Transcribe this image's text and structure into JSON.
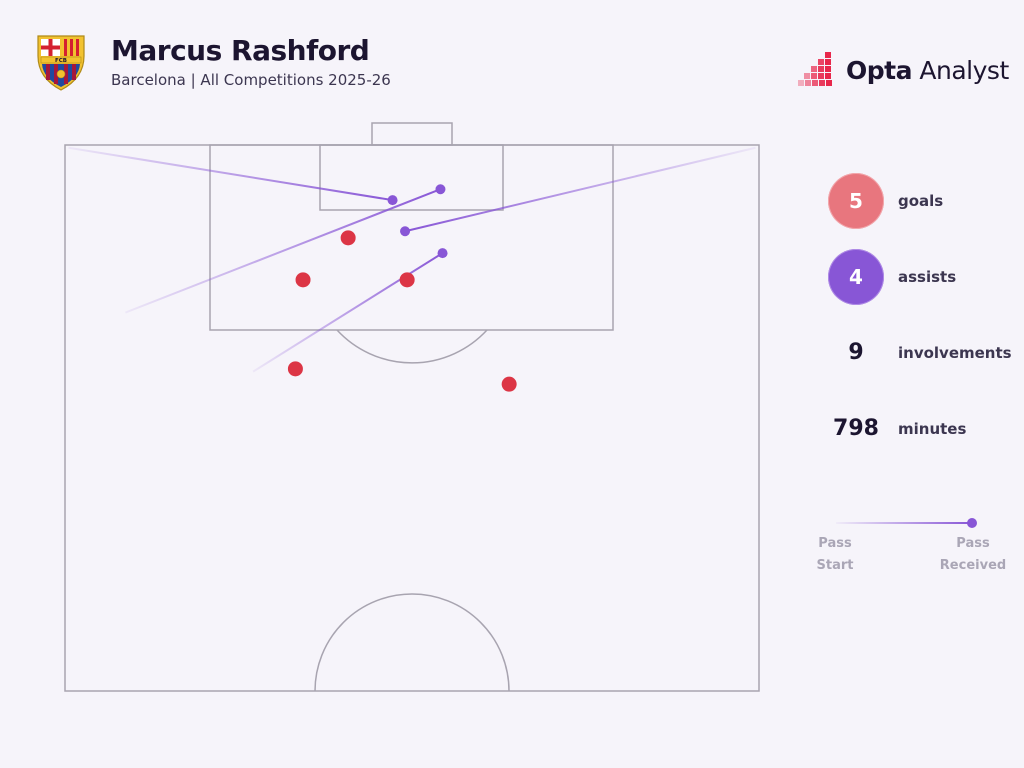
{
  "header": {
    "title": "Marcus Rashford",
    "subtitle": "Barcelona | All Competitions 2025-26",
    "crest_icon": "fcb-crest-icon",
    "crest_text": "FCB"
  },
  "brand": {
    "name_bold": "Opta",
    "name_rest": " Analyst",
    "logo_icon": "opta-dots-icon",
    "accent": "#e8274b"
  },
  "stats": {
    "goals": {
      "value": "5",
      "label": "goals",
      "color": "#e8767e"
    },
    "assists": {
      "value": "4",
      "label": "assists",
      "color": "#8856d6"
    },
    "involvements": {
      "value": "9",
      "label": "involvements"
    },
    "minutes": {
      "value": "798",
      "label": "minutes"
    }
  },
  "legend": {
    "start_label": "Pass Start",
    "end_label": "Pass Received",
    "color": "#8856d6"
  },
  "chart_data": {
    "type": "scatter",
    "pitch": "half-pitch, attacking end at top; x = 0-100 across width, y = 0-100 distance up from halfway line",
    "goal_shots": {
      "color": "#dc3545",
      "points": [
        {
          "x": 40.8,
          "y": 83.0
        },
        {
          "x": 34.3,
          "y": 75.3
        },
        {
          "x": 49.3,
          "y": 75.3
        },
        {
          "x": 33.2,
          "y": 59.0
        },
        {
          "x": 64.0,
          "y": 56.2
        }
      ]
    },
    "assist_passes": {
      "color": "#8856d6",
      "passes": [
        {
          "start": {
            "x": 0.5,
            "y": 99.5
          },
          "end": {
            "x": 47.2,
            "y": 89.9
          }
        },
        {
          "start": {
            "x": 8.7,
            "y": 69.3
          },
          "end": {
            "x": 54.1,
            "y": 91.9
          }
        },
        {
          "start": {
            "x": 99.5,
            "y": 99.5
          },
          "end": {
            "x": 49.0,
            "y": 84.2
          }
        },
        {
          "start": {
            "x": 27.1,
            "y": 58.5
          },
          "end": {
            "x": 54.4,
            "y": 80.2
          }
        }
      ]
    }
  }
}
